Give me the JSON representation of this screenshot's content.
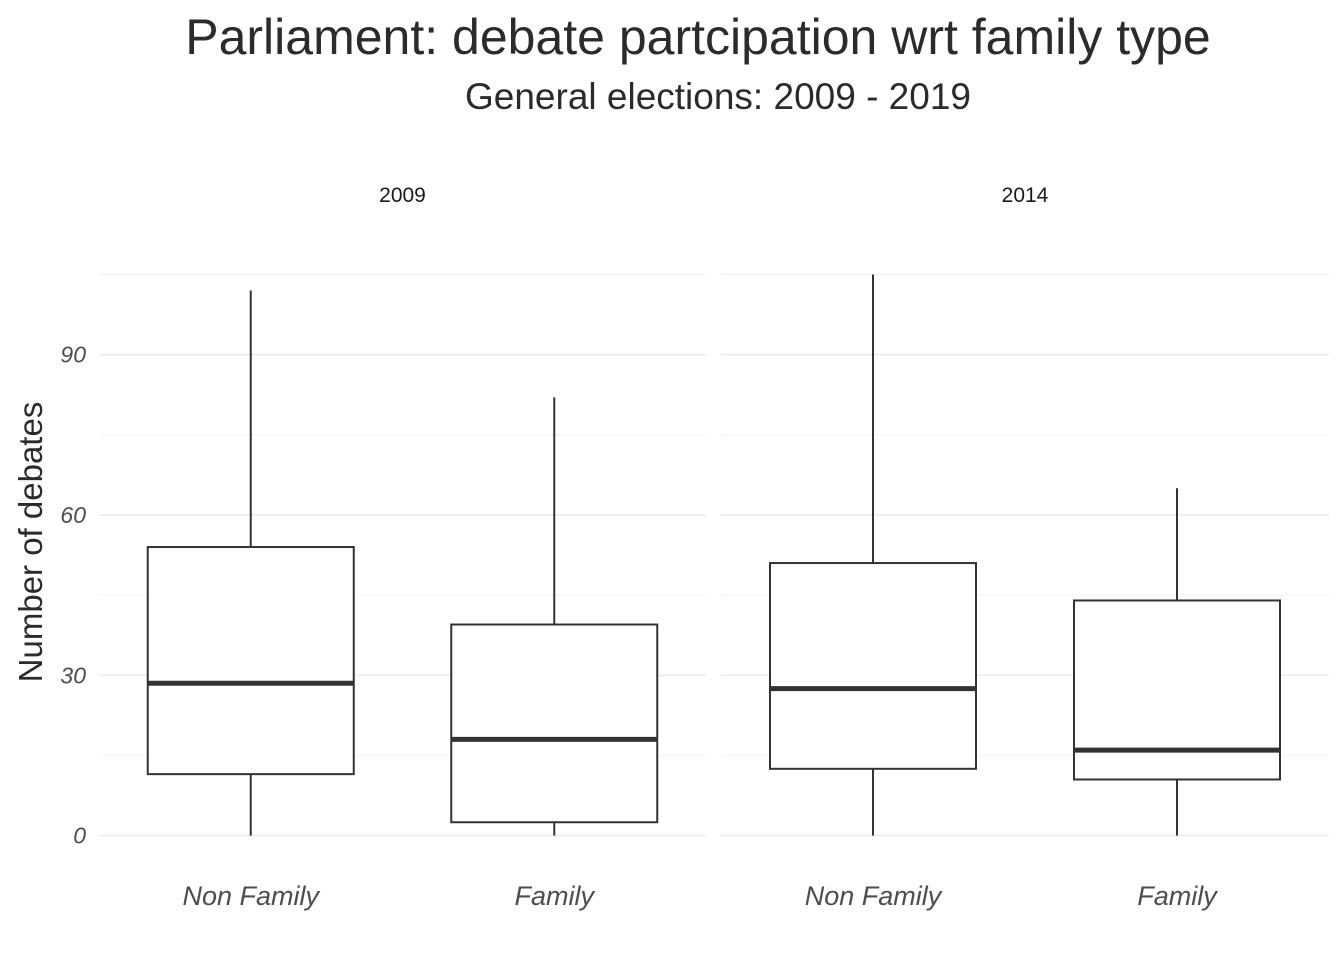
{
  "chart_data": {
    "type": "boxplot",
    "title": "Parliament: debate partcipation wrt family type",
    "subtitle": "General elections: 2009 - 2019",
    "ylabel": "Number of debates",
    "xlabel": "",
    "ylim": [
      -5,
      105
    ],
    "yticks": [
      0,
      30,
      60,
      90
    ],
    "yticklabels": [
      "0",
      "30",
      "60",
      "90"
    ],
    "grid": true,
    "categories": [
      "Non Family",
      "Family"
    ],
    "panels": [
      {
        "label": "2009",
        "boxes": [
          {
            "category": "Non Family",
            "min": 0,
            "q1": 11.5,
            "median": 28.5,
            "q3": 54,
            "max": 102
          },
          {
            "category": "Family",
            "min": 0,
            "q1": 2.5,
            "median": 18,
            "q3": 39.5,
            "max": 82
          }
        ]
      },
      {
        "label": "2014",
        "boxes": [
          {
            "category": "Non Family",
            "min": 0,
            "q1": 12.5,
            "median": 27.5,
            "q3": 51,
            "max": 105
          },
          {
            "category": "Family",
            "min": 0,
            "q1": 10.5,
            "median": 16,
            "q3": 44,
            "max": 65
          }
        ]
      }
    ]
  }
}
